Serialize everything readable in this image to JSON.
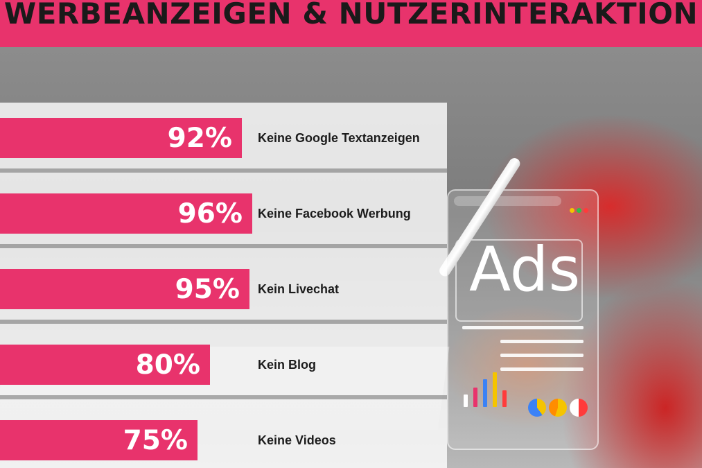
{
  "title": "WERBEANZEIGEN & NUTZERINTERAKTION",
  "colors": {
    "accent": "#e8336c",
    "title_text": "#1a1a1a",
    "label_text": "#1c1c1c",
    "value_text": "#ffffff"
  },
  "decor": {
    "ads_word": "Ads"
  },
  "chart_data": {
    "type": "bar",
    "orientation": "horizontal",
    "title": "WERBEANZEIGEN & NUTZERINTERAKTION",
    "xlabel": "",
    "ylabel": "",
    "xlim": [
      0,
      100
    ],
    "grid": false,
    "legend": "none",
    "categories": [
      "Keine Google Textanzeigen",
      "Keine Facebook Werbung",
      "Kein Livechat",
      "Kein Blog",
      "Keine Videos"
    ],
    "values": [
      92,
      96,
      95,
      80,
      75
    ],
    "value_labels": [
      "92%",
      "96%",
      "95%",
      "80%",
      "75%"
    ]
  }
}
